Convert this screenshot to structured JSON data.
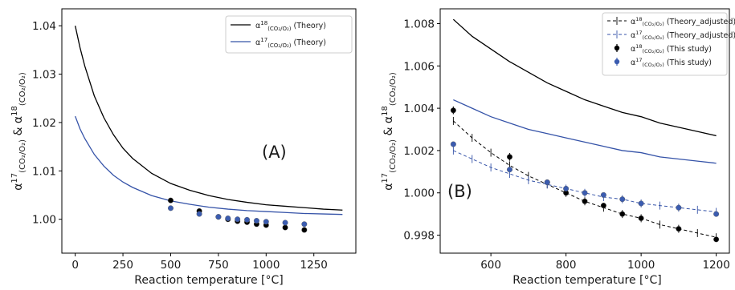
{
  "chart_data": [
    {
      "type": "line",
      "panel_label": "(A)",
      "xlabel": "Reaction temperature [°C]",
      "ylabel": "α17(CO2/O2) & α18(CO2/O2)",
      "xlim": [
        -70,
        1470
      ],
      "ylim": [
        0.993,
        1.0435
      ],
      "xticks": [
        0,
        250,
        500,
        750,
        1000,
        1250
      ],
      "yticks": [
        1.0,
        1.01,
        1.02,
        1.03,
        1.04
      ],
      "ytick_labels": [
        "1.00",
        "1.01",
        "1.02",
        "1.03",
        "1.04"
      ],
      "legend_position": "top-right",
      "series": [
        {
          "name": "α18(CO2/O2) (Theory)",
          "kind": "line",
          "color": "#000000",
          "x": [
            0,
            25,
            50,
            100,
            150,
            200,
            250,
            300,
            400,
            500,
            600,
            700,
            800,
            900,
            1000,
            1100,
            1200,
            1300,
            1400
          ],
          "y": [
            1.04,
            1.0355,
            1.0317,
            1.0255,
            1.021,
            1.0175,
            1.0147,
            1.0126,
            1.0095,
            1.0074,
            1.006,
            1.0049,
            1.0041,
            1.0035,
            1.003,
            1.0027,
            1.0024,
            1.0021,
            1.0019
          ]
        },
        {
          "name": "α17(CO2/O2) (Theory)",
          "kind": "line",
          "color": "#3553a8",
          "x": [
            0,
            25,
            50,
            100,
            150,
            200,
            250,
            300,
            400,
            500,
            600,
            700,
            800,
            900,
            1000,
            1100,
            1200,
            1300,
            1400
          ],
          "y": [
            1.0213,
            1.0187,
            1.0167,
            1.0134,
            1.011,
            1.0091,
            1.0077,
            1.0066,
            1.0049,
            1.0038,
            1.0031,
            1.0025,
            1.0021,
            1.0018,
            1.0016,
            1.0014,
            1.0012,
            1.0011,
            1.001
          ]
        },
        {
          "name": "α18 (This study)",
          "kind": "points",
          "color": "#000000",
          "x": [
            500,
            650,
            750,
            800,
            850,
            900,
            950,
            1000,
            1100,
            1200
          ],
          "y": [
            1.0039,
            1.0017,
            1.0005,
            1.0,
            0.9996,
            0.9994,
            0.999,
            0.9988,
            0.9983,
            0.9978
          ]
        },
        {
          "name": "α17 (This study)",
          "kind": "points",
          "color": "#3b5cb0",
          "x": [
            500,
            650,
            750,
            800,
            850,
            900,
            950,
            1000,
            1100,
            1200
          ],
          "y": [
            1.0023,
            1.0011,
            1.0005,
            1.0002,
            1.0,
            0.9999,
            0.9997,
            0.9995,
            0.9993,
            0.999
          ]
        }
      ]
    },
    {
      "type": "line",
      "panel_label": "(B)",
      "xlabel": "Reaction temperature [°C]",
      "ylabel": "α17(CO2/O2) & α18(CO2/O2)",
      "xlim": [
        465,
        1235
      ],
      "ylim": [
        0.99715,
        1.0087
      ],
      "xticks": [
        600,
        800,
        1000,
        1200
      ],
      "yticks": [
        0.998,
        1.0,
        1.002,
        1.004,
        1.006,
        1.008
      ],
      "ytick_labels": [
        "0.998",
        "1.000",
        "1.002",
        "1.004",
        "1.006",
        "1.008"
      ],
      "legend_position": "top-right",
      "series": [
        {
          "name": "α18 (Theory)",
          "kind": "line",
          "color": "#000000",
          "x": [
            500,
            550,
            600,
            650,
            700,
            750,
            800,
            850,
            900,
            950,
            1000,
            1050,
            1100,
            1150,
            1200
          ],
          "y": [
            1.0082,
            1.0074,
            1.0068,
            1.0062,
            1.0057,
            1.0052,
            1.0048,
            1.0044,
            1.0041,
            1.0038,
            1.0036,
            1.0033,
            1.0031,
            1.0029,
            1.0027
          ]
        },
        {
          "name": "α17 (Theory)",
          "kind": "line",
          "color": "#3553a8",
          "x": [
            500,
            550,
            600,
            650,
            700,
            750,
            800,
            850,
            900,
            950,
            1000,
            1050,
            1100,
            1150,
            1200
          ],
          "y": [
            1.0044,
            1.004,
            1.0036,
            1.0033,
            1.003,
            1.0028,
            1.0026,
            1.0024,
            1.0022,
            1.002,
            1.0019,
            1.0017,
            1.0016,
            1.0015,
            1.0014
          ]
        },
        {
          "name": "α18(CO2/O2) (Theory_adjusted)",
          "kind": "dashed-cross",
          "color": "#000000",
          "x": [
            500,
            550,
            600,
            650,
            700,
            750,
            800,
            850,
            900,
            950,
            1000,
            1050,
            1100,
            1150,
            1200
          ],
          "y": [
            1.0034,
            1.0026,
            1.0019,
            1.0013,
            1.0008,
            1.0004,
            1.0,
            0.9996,
            0.9993,
            0.999,
            0.9988,
            0.9985,
            0.9983,
            0.9981,
            0.9979
          ]
        },
        {
          "name": "α17(CO2/O2) (Theory_adjusted)",
          "kind": "dashed-cross",
          "color": "#3553a8",
          "x": [
            500,
            550,
            600,
            650,
            700,
            750,
            800,
            850,
            900,
            950,
            1000,
            1050,
            1100,
            1150,
            1200
          ],
          "y": [
            1.002,
            1.0016,
            1.0012,
            1.0009,
            1.0006,
            1.0004,
            1.0002,
            1.0,
            0.9998,
            0.9997,
            0.9995,
            0.9994,
            0.9993,
            0.9992,
            0.9991
          ]
        },
        {
          "name": "α18(CO2/O2) (This study)",
          "kind": "points-errorbar",
          "color": "#000000",
          "x": [
            500,
            650,
            750,
            800,
            850,
            900,
            950,
            1000,
            1100,
            1200
          ],
          "y": [
            1.0039,
            1.0017,
            1.0005,
            1.0,
            0.9996,
            0.9994,
            0.999,
            0.9988,
            0.9983,
            0.9978
          ],
          "err": [
            0.00018,
            0.00018,
            8e-05,
            8e-05,
            8e-05,
            8e-05,
            8e-05,
            8e-05,
            8e-05,
            8e-05
          ]
        },
        {
          "name": "α17(CO2/O2) (This study)",
          "kind": "points-errorbar",
          "color": "#3b5cb0",
          "x": [
            500,
            650,
            750,
            800,
            850,
            900,
            950,
            1000,
            1100,
            1200
          ],
          "y": [
            1.0023,
            1.0011,
            1.0005,
            1.0002,
            1.0,
            0.9999,
            0.9997,
            0.9995,
            0.9993,
            0.999
          ],
          "err": [
            8e-05,
            8e-05,
            5e-05,
            5e-05,
            5e-05,
            5e-05,
            5e-05,
            5e-05,
            5e-05,
            5e-05
          ]
        }
      ]
    }
  ],
  "legends": {
    "a": [
      {
        "sym": "α",
        "sup": "18",
        "sub": "(CO₂/O₂)",
        "suffix": " (Theory)"
      },
      {
        "sym": "α",
        "sup": "17",
        "sub": "(CO₂/O₂)",
        "suffix": " (Theory)"
      }
    ],
    "b": [
      {
        "sym": "α",
        "sup": "18",
        "sub": "(CO₂/O₂)",
        "suffix": " (Theory_adjusted)"
      },
      {
        "sym": "α",
        "sup": "17",
        "sub": "(CO₂/O₂)",
        "suffix": " (Theory_adjusted)"
      },
      {
        "sym": "α",
        "sup": "18",
        "sub": "(CO₂/O₂)",
        "suffix": " (This study)"
      },
      {
        "sym": "α",
        "sup": "17",
        "sub": "(CO₂/O₂)",
        "suffix": " (This study)"
      }
    ]
  },
  "ylabel_parts": {
    "sym": "α",
    "sup1": "17",
    "sub": "(CO₂/O₂)",
    "amp": " & ",
    "sup2": "18"
  }
}
